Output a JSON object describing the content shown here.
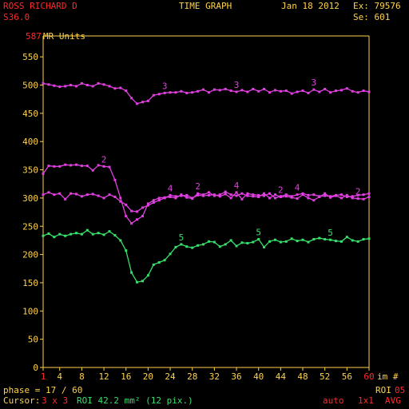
{
  "header": {
    "patient_name": "ROSS RICHARD D",
    "series_desc": "S36.0",
    "title": "TIME GRAPH",
    "date": "Jan 18 2012",
    "exam": "Ex: 79576",
    "series": "Se: 601"
  },
  "footer": {
    "phase": "phase = 17 / 60",
    "cursor_label": "Cursor:",
    "cursor_size": "3 x 3",
    "roi_info": "ROI 42.2 mm² (12 pix.)",
    "roi_label": "ROI",
    "roi_number": "05",
    "mode_auto": "auto",
    "mode_scale": "1x1",
    "mode_avg": "AVG"
  },
  "colors": {
    "background": "#000000",
    "axis": "#ffd24a",
    "text_red": "#ff2a2a",
    "text_yellow": "#ffd24a",
    "text_green": "#36e06a",
    "series_magenta": "#e040e0",
    "series_green": "#36e06a"
  },
  "chart_data": {
    "type": "line",
    "title": "TIME GRAPH",
    "ylabel": "MR Units",
    "ylabel_max": "587",
    "xlabel": "im #",
    "xlim": [
      1,
      60
    ],
    "ylim": [
      0,
      587
    ],
    "xticks": [
      1,
      4,
      8,
      12,
      16,
      20,
      24,
      28,
      32,
      36,
      40,
      44,
      48,
      52,
      56,
      60
    ],
    "yticks": [
      0,
      50,
      100,
      150,
      200,
      250,
      300,
      350,
      400,
      450,
      500,
      550
    ],
    "grid": false,
    "legend": "none",
    "series": [
      {
        "name": "3",
        "color": "#e040e0",
        "x": [
          1,
          2,
          3,
          4,
          5,
          6,
          7,
          8,
          9,
          10,
          11,
          12,
          13,
          14,
          15,
          16,
          17,
          18,
          19,
          20,
          21,
          22,
          23,
          24,
          25,
          26,
          27,
          28,
          29,
          30,
          31,
          32,
          33,
          34,
          35,
          36,
          37,
          38,
          39,
          40,
          41,
          42,
          43,
          44,
          45,
          46,
          47,
          48,
          49,
          50,
          51,
          52,
          53,
          54,
          55,
          56,
          57,
          58,
          59,
          60
        ],
        "values": [
          503,
          501,
          499,
          497,
          498,
          500,
          498,
          503,
          500,
          498,
          503,
          501,
          498,
          494,
          495,
          490,
          477,
          467,
          470,
          472,
          482,
          484,
          486,
          487,
          487,
          489,
          486,
          487,
          489,
          492,
          487,
          492,
          491,
          493,
          490,
          488,
          491,
          488,
          493,
          489,
          493,
          487,
          491,
          489,
          490,
          485,
          488,
          490,
          486,
          492,
          488,
          493,
          487,
          490,
          491,
          494,
          489,
          487,
          490,
          488
        ],
        "labels_at": [
          23,
          36,
          50
        ]
      },
      {
        "name": "2",
        "color": "#e040e0",
        "x": [
          1,
          2,
          3,
          4,
          5,
          6,
          7,
          8,
          9,
          10,
          11,
          12,
          13,
          14,
          15,
          16,
          17,
          18,
          19,
          20,
          21,
          22,
          23,
          24,
          25,
          26,
          27,
          28,
          29,
          30,
          31,
          32,
          33,
          34,
          35,
          36,
          37,
          38,
          39,
          40,
          41,
          42,
          43,
          44,
          45,
          46,
          47,
          48,
          49,
          50,
          51,
          52,
          53,
          54,
          55,
          56,
          57,
          58,
          59,
          60
        ],
        "values": [
          343,
          357,
          356,
          356,
          359,
          358,
          359,
          357,
          357,
          349,
          358,
          356,
          355,
          332,
          300,
          268,
          255,
          262,
          268,
          290,
          296,
          300,
          301,
          302,
          300,
          306,
          301,
          299,
          308,
          306,
          310,
          304,
          306,
          311,
          306,
          304,
          308,
          304,
          303,
          302,
          308,
          300,
          306,
          302,
          303,
          301,
          299,
          306,
          300,
          296,
          302,
          308,
          301,
          304,
          300,
          305,
          300,
          299,
          298,
          302
        ],
        "labels_at": [
          12,
          29,
          44,
          58
        ]
      },
      {
        "name": "4",
        "color": "#e040e0",
        "x": [
          1,
          2,
          3,
          4,
          5,
          6,
          7,
          8,
          9,
          10,
          11,
          12,
          13,
          14,
          15,
          16,
          17,
          18,
          19,
          20,
          21,
          22,
          23,
          24,
          25,
          26,
          27,
          28,
          29,
          30,
          31,
          32,
          33,
          34,
          35,
          36,
          37,
          38,
          39,
          40,
          41,
          42,
          43,
          44,
          45,
          46,
          47,
          48,
          49,
          50,
          51,
          52,
          53,
          54,
          55,
          56,
          57,
          58,
          59,
          60
        ],
        "values": [
          306,
          310,
          306,
          308,
          298,
          308,
          307,
          303,
          306,
          307,
          304,
          300,
          306,
          302,
          294,
          288,
          277,
          276,
          283,
          287,
          292,
          296,
          300,
          305,
          303,
          304,
          305,
          300,
          305,
          304,
          305,
          306,
          303,
          307,
          300,
          310,
          298,
          308,
          306,
          305,
          304,
          308,
          300,
          303,
          306,
          303,
          306,
          308,
          305,
          306,
          303,
          304,
          303,
          305,
          306,
          302,
          303,
          305,
          306,
          308
        ],
        "labels_at": [
          24,
          36,
          47
        ]
      },
      {
        "name": "5",
        "color": "#36e06a",
        "x": [
          1,
          2,
          3,
          4,
          5,
          6,
          7,
          8,
          9,
          10,
          11,
          12,
          13,
          14,
          15,
          16,
          17,
          18,
          19,
          20,
          21,
          22,
          23,
          24,
          25,
          26,
          27,
          28,
          29,
          30,
          31,
          32,
          33,
          34,
          35,
          36,
          37,
          38,
          39,
          40,
          41,
          42,
          43,
          44,
          45,
          46,
          47,
          48,
          49,
          50,
          51,
          52,
          53,
          54,
          55,
          56,
          57,
          58,
          59,
          60
        ],
        "values": [
          233,
          237,
          231,
          236,
          233,
          236,
          238,
          236,
          243,
          236,
          238,
          235,
          241,
          234,
          225,
          207,
          168,
          151,
          153,
          163,
          182,
          186,
          190,
          201,
          213,
          218,
          214,
          212,
          216,
          218,
          223,
          222,
          214,
          218,
          225,
          215,
          221,
          220,
          222,
          227,
          213,
          223,
          226,
          222,
          223,
          228,
          224,
          226,
          222,
          227,
          229,
          227,
          226,
          224,
          223,
          231,
          225,
          223,
          227,
          228
        ],
        "labels_at": [
          26,
          40,
          53
        ]
      }
    ]
  }
}
